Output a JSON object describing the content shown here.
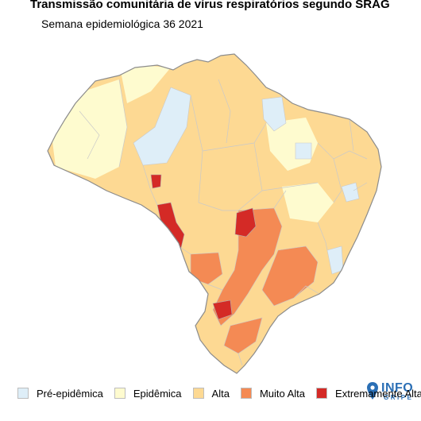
{
  "title": "Transmissão comunitária de vírus respiratórios segundo SRAG",
  "subtitle": "Semana epidemiológica 36 2021",
  "logo": {
    "word": "INFO",
    "sub": "GRIPE"
  },
  "legend": [
    {
      "label": "Pré-epidêmica",
      "color": "#deeef8"
    },
    {
      "label": "Epidêmica",
      "color": "#fefbcf"
    },
    {
      "label": "Alta",
      "color": "#fdd993"
    },
    {
      "label": "Muito Alta",
      "color": "#f48a54"
    },
    {
      "label": "Extremamente Alta",
      "color": "#d42a26"
    }
  ]
}
